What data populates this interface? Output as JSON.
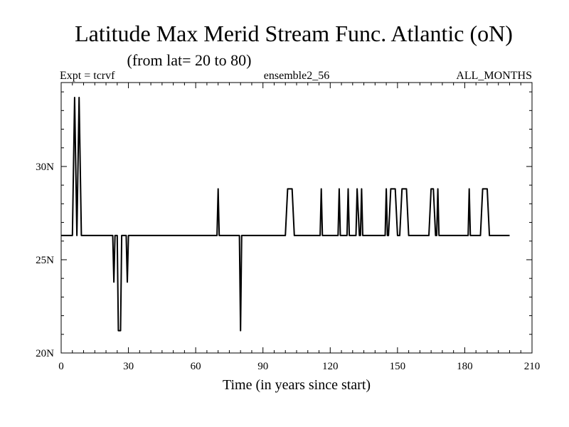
{
  "chart_data": {
    "type": "line",
    "title": "Latitude Max Merid Stream Func. Atlantic (oN)",
    "subtitle": "(from lat= 20 to 80)",
    "header_left": "Expt = tcrvf",
    "header_center": "ensemble2_56",
    "header_right": "ALL_MONTHS",
    "xlabel": "Time (in years since start)",
    "ylabel": "",
    "xlim": [
      0,
      210
    ],
    "ylim": [
      20,
      34.5
    ],
    "x_ticks": [
      0,
      30,
      60,
      90,
      120,
      150,
      180,
      210
    ],
    "x_tick_labels": [
      "0",
      "30",
      "60",
      "90",
      "120",
      "150",
      "180",
      "210"
    ],
    "y_ticks": [
      20,
      25,
      30
    ],
    "y_tick_labels": [
      "20N",
      "25N",
      "30N"
    ],
    "grid": false,
    "legend": "none",
    "line_color": "#000000",
    "series": [
      {
        "x": [
          0,
          5,
          6,
          7,
          8,
          9,
          10,
          23,
          23.5,
          24,
          24.5,
          25,
          25.5,
          26,
          26.5,
          27,
          27.5,
          28,
          28.5,
          29,
          29.5,
          30,
          30.5,
          31,
          31.5,
          32,
          32.5,
          33,
          69,
          69.5,
          70,
          70.5,
          71,
          79,
          79.5,
          80,
          80.5,
          81,
          100,
          101,
          102,
          103,
          104,
          115,
          115.5,
          116,
          116.5,
          117,
          123,
          123.5,
          124,
          124.5,
          125,
          127,
          127.5,
          128,
          128.5,
          129,
          131,
          131.5,
          132,
          133,
          133.5,
          134,
          134.5,
          135,
          144,
          144.5,
          145,
          145.5,
          146,
          147,
          148,
          149,
          150,
          151,
          152,
          153,
          154,
          155,
          164,
          165,
          166,
          167,
          167.5,
          168,
          168.5,
          169,
          181,
          181.5,
          182,
          182.5,
          183,
          187,
          188,
          189,
          190,
          191,
          200
        ],
        "y": [
          26.3,
          26.3,
          33.7,
          26.3,
          33.7,
          26.3,
          26.3,
          26.3,
          23.8,
          26.3,
          26.3,
          26.3,
          21.2,
          21.2,
          21.2,
          26.3,
          26.3,
          26.3,
          26.3,
          26.3,
          23.8,
          26.3,
          26.3,
          26.3,
          26.3,
          26.3,
          26.3,
          26.3,
          26.3,
          26.3,
          28.8,
          26.3,
          26.3,
          26.3,
          26.3,
          21.2,
          26.3,
          26.3,
          26.3,
          28.8,
          28.8,
          28.8,
          26.3,
          26.3,
          26.3,
          28.8,
          26.3,
          26.3,
          26.3,
          26.3,
          28.8,
          26.3,
          26.3,
          26.3,
          26.3,
          28.8,
          26.3,
          26.3,
          26.3,
          26.3,
          28.8,
          26.3,
          26.3,
          28.8,
          26.3,
          26.3,
          26.3,
          26.3,
          28.8,
          26.3,
          26.3,
          28.8,
          28.8,
          28.8,
          26.3,
          26.3,
          28.8,
          28.8,
          28.8,
          26.3,
          26.3,
          28.8,
          28.8,
          26.3,
          26.3,
          28.8,
          26.3,
          26.3,
          26.3,
          26.3,
          28.8,
          26.3,
          26.3,
          26.3,
          28.8,
          28.8,
          28.8,
          26.3,
          26.3
        ]
      }
    ]
  }
}
